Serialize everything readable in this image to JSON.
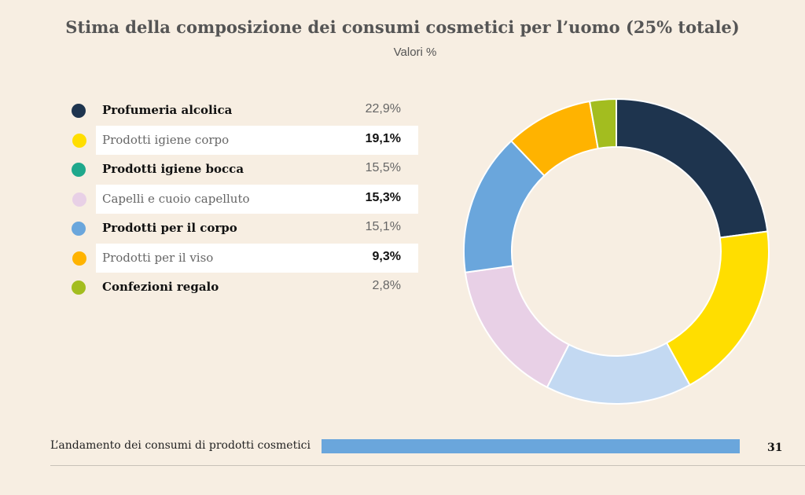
{
  "chart_data": {
    "type": "pie",
    "title": "Stima della composizione dei consumi cosmetici per l’uomo (25% totale)",
    "subtitle": "Valori %",
    "legend": [
      {
        "label": "Profumeria alcolica",
        "value_label": "22,9%",
        "value": 22.9,
        "color": "#1e344e",
        "style": "strong"
      },
      {
        "label": "Prodotti igiene corpo",
        "value_label": "19,1%",
        "value": 19.1,
        "color": "#ffde00",
        "style": "band"
      },
      {
        "label": "Prodotti igiene bocca",
        "value_label": "15,5%",
        "value": 15.5,
        "color": "#1fa88c",
        "style": "strong"
      },
      {
        "label": "Capelli e cuoio capelluto",
        "value_label": "15,3%",
        "value": 15.3,
        "color": "#e8d0e6",
        "style": "band"
      },
      {
        "label": "Prodotti per il corpo",
        "value_label": "15,1%",
        "value": 15.1,
        "color": "#6aa6dc",
        "style": "strong"
      },
      {
        "label": "Prodotti per il viso",
        "value_label": "9,3%",
        "value": 9.3,
        "color": "#ffb300",
        "style": "band"
      },
      {
        "label": "Confezioni regalo",
        "value_label": "2,8%",
        "value": 2.8,
        "color": "#a3bd1f",
        "style": "strong"
      }
    ],
    "slices": [
      {
        "value": 22.9,
        "color": "#1e344e"
      },
      {
        "value": 19.1,
        "color": "#ffde00"
      },
      {
        "value": 15.5,
        "color": "#c3d9f2"
      },
      {
        "value": 15.3,
        "color": "#e8d0e6"
      },
      {
        "value": 15.1,
        "color": "#6aa6dc"
      },
      {
        "value": 9.3,
        "color": "#ffb300"
      },
      {
        "value": 2.8,
        "color": "#a3bd1f"
      }
    ]
  },
  "footer": {
    "text": "L’andamento dei consumi di prodotti cosmetici",
    "page_number": "31"
  }
}
